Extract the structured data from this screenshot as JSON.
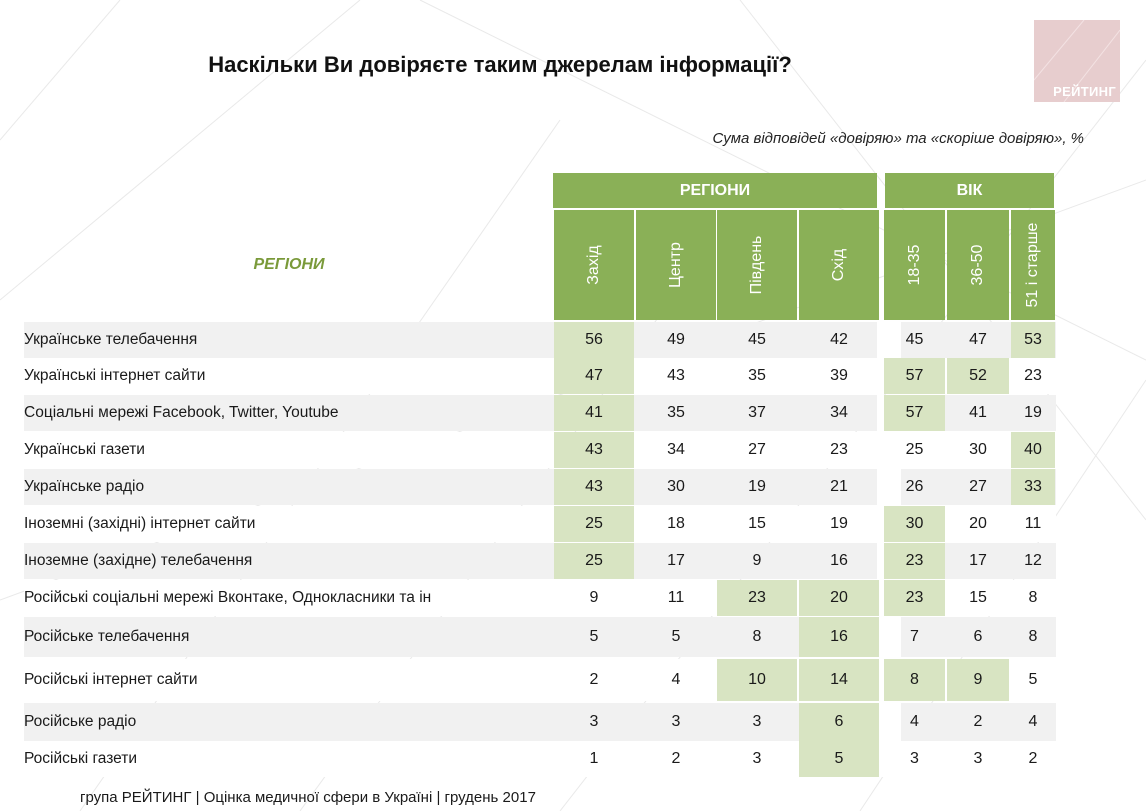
{
  "header": {
    "title": "Наскільки Ви довіряєте таким джерелам інформації?",
    "subtitle": "Сума відповідей «довіряю» та «скоріше довіряю», %",
    "logo_text": "РЕЙТИНГ"
  },
  "table": {
    "corner_label": "РЕГІОНИ",
    "groups": [
      "РЕГІОНИ",
      "ВІК"
    ],
    "columns": [
      "Захід",
      "Центр",
      "Південь",
      "Схід",
      "18-35",
      "36-50",
      "51 і старше"
    ],
    "rows": [
      {
        "label": "Українське телебачення",
        "values": [
          "56",
          "49",
          "45",
          "42",
          "45",
          "47",
          "53"
        ],
        "highlight": [
          0,
          6
        ]
      },
      {
        "label": "Українські інтернет сайти",
        "values": [
          "47",
          "43",
          "35",
          "39",
          "57",
          "52",
          "23"
        ],
        "highlight": [
          0,
          4,
          5
        ]
      },
      {
        "label": "Соціальні мережі Facebook, Twitter, Youtube",
        "values": [
          "41",
          "35",
          "37",
          "34",
          "57",
          "41",
          "19"
        ],
        "highlight": [
          0,
          4
        ]
      },
      {
        "label": "Українські газети",
        "values": [
          "43",
          "34",
          "27",
          "23",
          "25",
          "30",
          "40"
        ],
        "highlight": [
          0,
          6
        ]
      },
      {
        "label": "Українське радіо",
        "values": [
          "43",
          "30",
          "19",
          "21",
          "26",
          "27",
          "33"
        ],
        "highlight": [
          0,
          6
        ]
      },
      {
        "label": "Іноземні (західні) інтернет сайти",
        "values": [
          "25",
          "18",
          "15",
          "19",
          "30",
          "20",
          "11"
        ],
        "highlight": [
          0,
          4
        ]
      },
      {
        "label": "Іноземне (західне) телебачення",
        "values": [
          "25",
          "17",
          "9",
          "16",
          "23",
          "17",
          "12"
        ],
        "highlight": [
          0,
          4
        ]
      },
      {
        "label": "Російські соціальні мережі Вконтаке, Однокласники та ін",
        "values": [
          "9",
          "11",
          "23",
          "20",
          "23",
          "15",
          "8"
        ],
        "highlight": [
          2,
          3,
          4
        ]
      },
      {
        "label": "Російське телебачення",
        "values": [
          "5",
          "5",
          "8",
          "16",
          "7",
          "6",
          "8"
        ],
        "highlight": [
          3
        ]
      },
      {
        "label": "Російські інтернет сайти",
        "values": [
          "2",
          "4",
          "10",
          "14",
          "8",
          "9",
          "5"
        ],
        "highlight": [
          2,
          3,
          4,
          5
        ]
      },
      {
        "label": "Російське радіо",
        "values": [
          "3",
          "3",
          "3",
          "6",
          "4",
          "2",
          "4"
        ],
        "highlight": [
          3
        ]
      },
      {
        "label": "Російські газети",
        "values": [
          "1",
          "2",
          "3",
          "5",
          "3",
          "3",
          "2"
        ],
        "highlight": [
          3
        ]
      }
    ]
  },
  "footer": "група РЕЙТИНГ  |  Оцінка медичної сфери в Україні  |  грудень 2017",
  "colors": {
    "header_green": "#8ab057",
    "highlight_green": "#d8e4c2",
    "accent_text_green": "#7a9a3a",
    "logo_pink": "#e7cdce",
    "row_shade": "#f1f1f1"
  }
}
